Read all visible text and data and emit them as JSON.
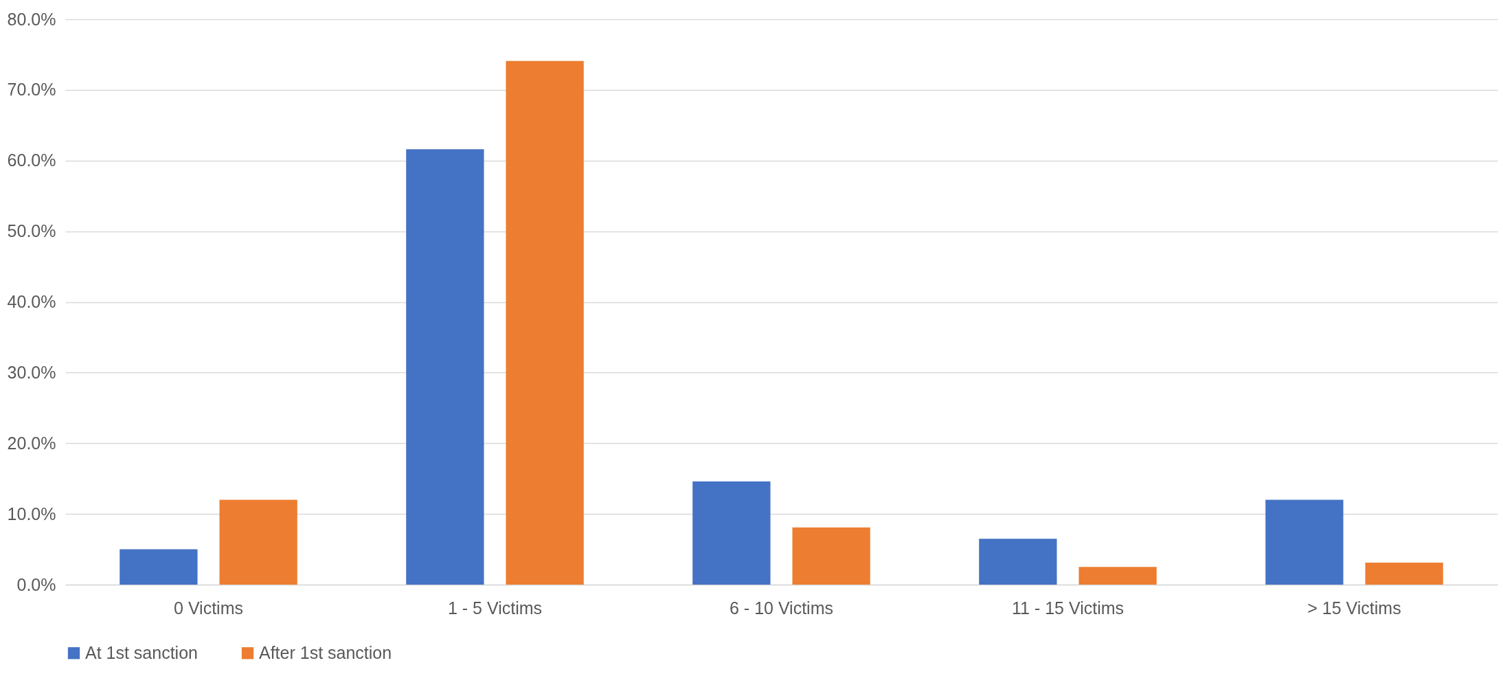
{
  "chart_data": {
    "type": "bar",
    "categories": [
      "0 Victims",
      "1 - 5 Victims",
      "6 - 10 Victims",
      "11 - 15 Victims",
      "> 15 Victims"
    ],
    "series": [
      {
        "name": "At 1st sanction",
        "color": "#4472c4",
        "values": [
          5.0,
          61.6,
          14.6,
          6.5,
          12.0
        ]
      },
      {
        "name": "After 1st sanction",
        "color": "#ed7d31",
        "values": [
          12.0,
          74.1,
          8.1,
          2.5,
          3.1
        ]
      }
    ],
    "ylim": [
      0,
      80
    ],
    "yticks": [
      {
        "value": 0,
        "label": "0.0%"
      },
      {
        "value": 10,
        "label": "10.0%"
      },
      {
        "value": 20,
        "label": "20.0%"
      },
      {
        "value": 30,
        "label": "30.0%"
      },
      {
        "value": 40,
        "label": "40.0%"
      },
      {
        "value": 50,
        "label": "50.0%"
      },
      {
        "value": 60,
        "label": "60.0%"
      },
      {
        "value": 70,
        "label": "70.0%"
      },
      {
        "value": 80,
        "label": "80.0%"
      }
    ],
    "grid": "y",
    "legend": "bottom"
  }
}
